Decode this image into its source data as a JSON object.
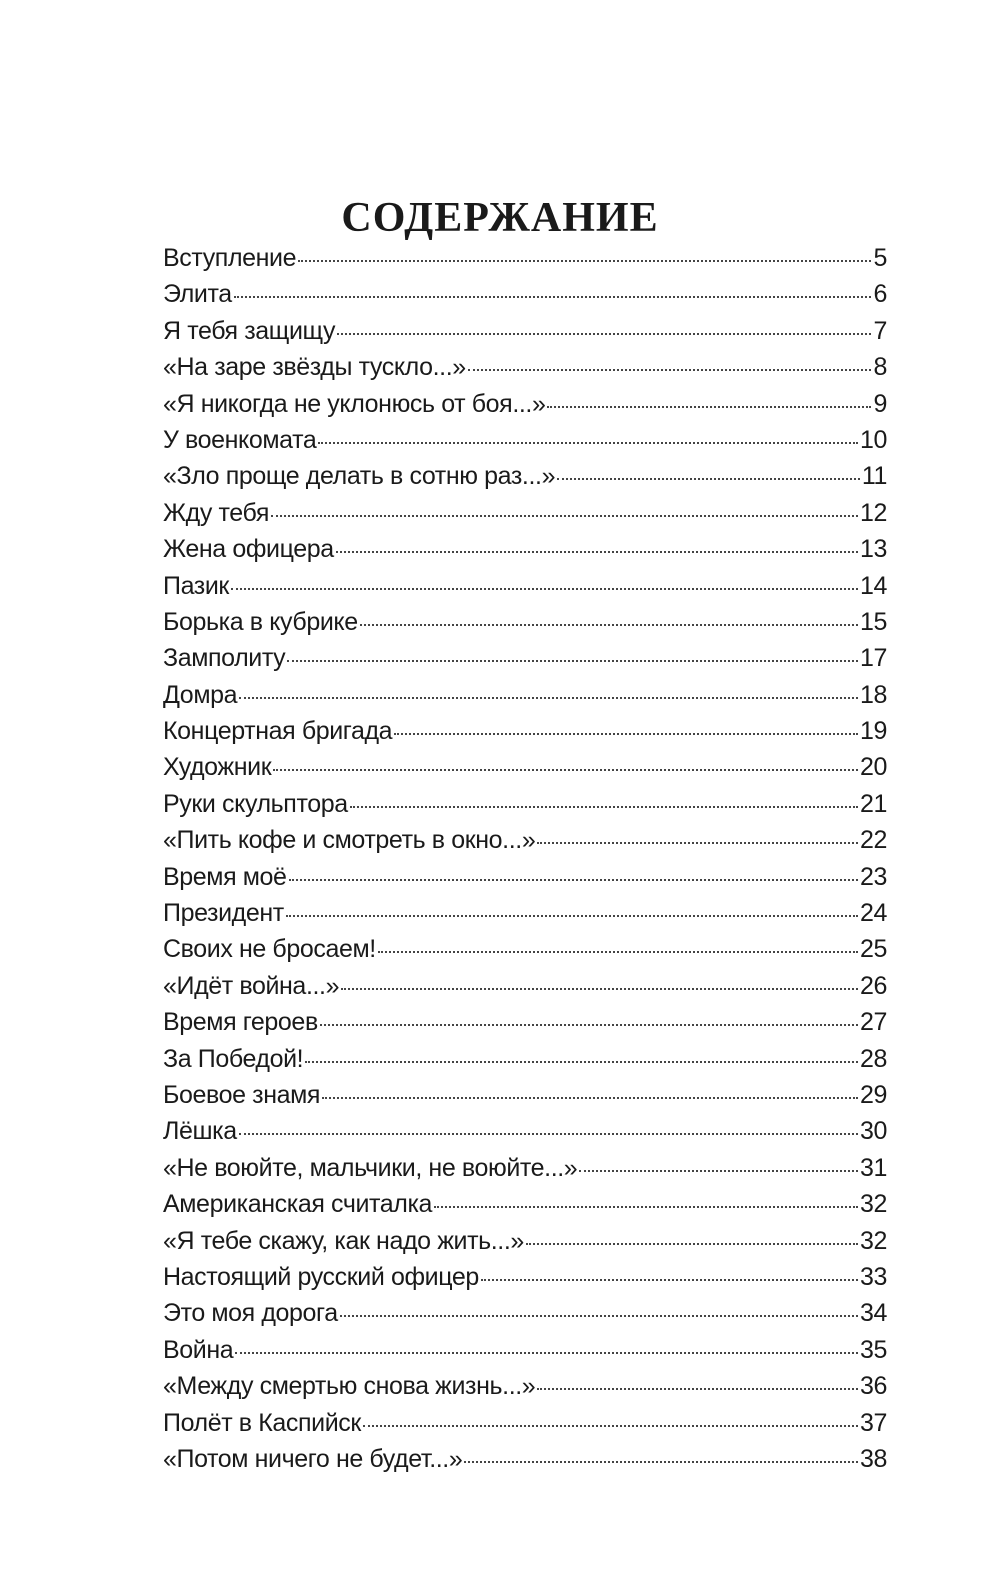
{
  "title": "СОДЕРЖАНИЕ",
  "entries": [
    {
      "title": "Вступление",
      "page": "5"
    },
    {
      "title": "Элита",
      "page": "6"
    },
    {
      "title": "Я тебя защищу",
      "page": "7"
    },
    {
      "title": "«На заре звёзды тускло...»",
      "page": "8"
    },
    {
      "title": "«Я никогда не уклонюсь от боя...»",
      "page": "9"
    },
    {
      "title": "У военкомата",
      "page": "10"
    },
    {
      "title": "«Зло проще делать в сотню раз...»",
      "page": "11"
    },
    {
      "title": "Жду тебя",
      "page": "12"
    },
    {
      "title": "Жена офицера",
      "page": "13"
    },
    {
      "title": "Пазик",
      "page": "14"
    },
    {
      "title": "Борька в кубрике",
      "page": "15"
    },
    {
      "title": "Замполиту",
      "page": "17"
    },
    {
      "title": "Домра",
      "page": "18"
    },
    {
      "title": "Концертная бригада",
      "page": "19"
    },
    {
      "title": "Художник",
      "page": "20"
    },
    {
      "title": "Руки скульптора",
      "page": "21"
    },
    {
      "title": "«Пить кофе и смотреть в окно...»",
      "page": "22"
    },
    {
      "title": "Время моё",
      "page": "23"
    },
    {
      "title": "Президент",
      "page": "24"
    },
    {
      "title": "Своих не бросаем!",
      "page": "25"
    },
    {
      "title": "«Идёт война...»",
      "page": "26"
    },
    {
      "title": "Время героев",
      "page": "27"
    },
    {
      "title": "За Победой!",
      "page": "28"
    },
    {
      "title": "Боевое знамя",
      "page": "29"
    },
    {
      "title": "Лёшка",
      "page": "30"
    },
    {
      "title": "«Не воюйте, мальчики, не воюйте...»",
      "page": "31"
    },
    {
      "title": "Американская считалка",
      "page": "32"
    },
    {
      "title": "«Я тебе скажу, как надо жить...»",
      "page": "32"
    },
    {
      "title": "Настоящий русский офицер",
      "page": "33"
    },
    {
      "title": "Это моя дорога",
      "page": "34"
    },
    {
      "title": "Война",
      "page": "35"
    },
    {
      "title": "«Между смертью снова жизнь...»",
      "page": "36"
    },
    {
      "title": "Полёт в Каспийск",
      "page": "37"
    },
    {
      "title": "«Потом ничего не будет...»",
      "page": "38"
    }
  ]
}
